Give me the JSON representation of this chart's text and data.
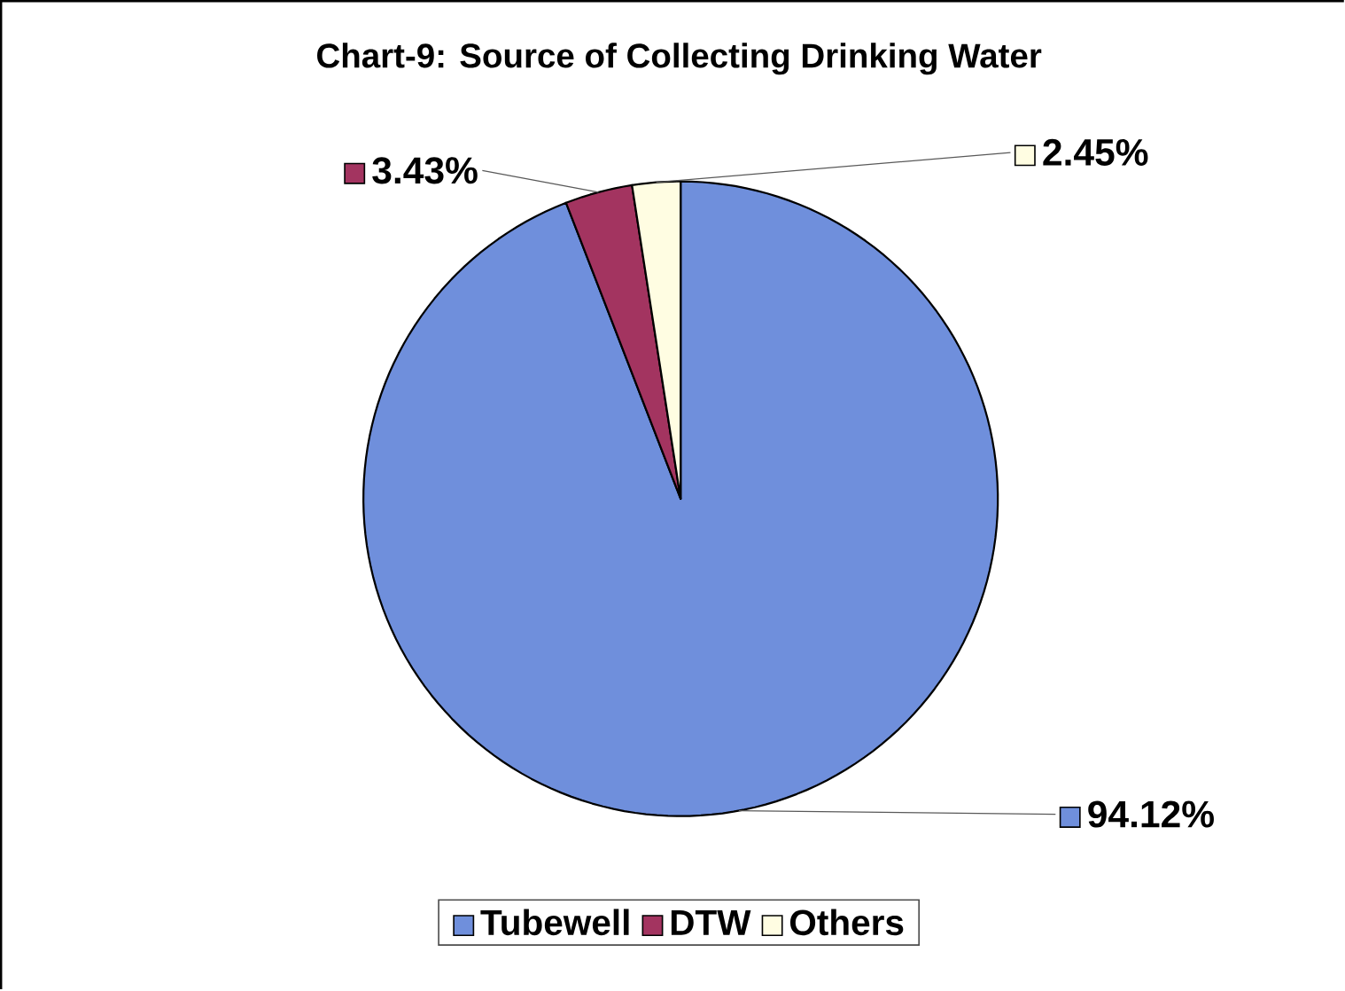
{
  "chart_data": {
    "type": "pie",
    "title": "Chart-9: Source of Collecting Drinking Water",
    "categories": [
      "Tubewell",
      "DTW",
      "Others"
    ],
    "values": [
      94.12,
      3.43,
      2.45
    ],
    "colors": [
      "#6f8fdc",
      "#a33460",
      "#fffde2"
    ],
    "value_labels": [
      "94.12%",
      "3.43%",
      "2.45%"
    ],
    "legend": "bottom"
  }
}
